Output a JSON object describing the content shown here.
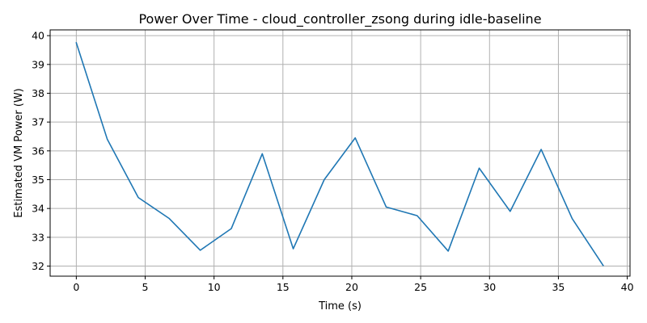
{
  "chart_data": {
    "type": "line",
    "title": "Power Over Time - cloud_controller_zsong during idle-baseline",
    "xlabel": "Time (s)",
    "ylabel": "Estimated VM Power (W)",
    "xlim": [
      -1.9,
      40.2
    ],
    "ylim": [
      31.65,
      40.2
    ],
    "xticks": [
      0,
      5,
      10,
      15,
      20,
      25,
      30,
      35,
      40
    ],
    "yticks": [
      32,
      33,
      34,
      35,
      36,
      37,
      38,
      39,
      40
    ],
    "grid": true,
    "series": [
      {
        "color": "#1f77b4",
        "x": [
          0,
          2.25,
          4.5,
          6.75,
          9.0,
          11.25,
          13.5,
          15.75,
          18.0,
          20.25,
          22.5,
          24.75,
          27.0,
          29.25,
          31.5,
          33.75,
          36.0,
          38.25
        ],
        "y": [
          39.75,
          36.4,
          34.38,
          33.65,
          32.55,
          33.3,
          35.9,
          32.6,
          35.0,
          36.45,
          34.05,
          33.75,
          32.52,
          35.4,
          33.9,
          36.05,
          33.65,
          32.02
        ]
      }
    ]
  }
}
